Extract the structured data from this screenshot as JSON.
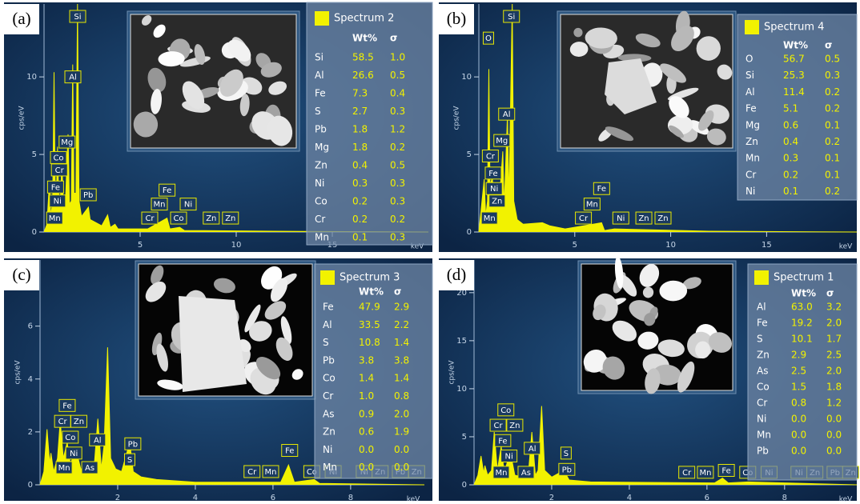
{
  "chart_data": [
    {
      "type": "line",
      "panel_label": "(a)",
      "xlabel": "keV",
      "ylabel": "cps/eV",
      "xlim": [
        0,
        20
      ],
      "ylim": [
        0,
        14.7
      ],
      "xticks": [
        5,
        10,
        15
      ],
      "yticks": [
        0,
        5,
        10
      ],
      "x": [
        0,
        0.15,
        0.28,
        0.35,
        0.45,
        0.52,
        0.58,
        0.65,
        0.7,
        0.76,
        0.85,
        0.93,
        1.0,
        1.1,
        1.25,
        1.32,
        1.42,
        1.49,
        1.56,
        1.66,
        1.74,
        1.82,
        1.95,
        2.31,
        2.4,
        3.0,
        3.31,
        3.45,
        3.69,
        3.85,
        5.4,
        6.4,
        6.55,
        7.06,
        7.3,
        12,
        20
      ],
      "series": [
        {
          "name": "Spectrum 2",
          "color": "#f2f200",
          "values": [
            0,
            0.5,
            3.2,
            1,
            2,
            10.3,
            3,
            2.5,
            5.5,
            2.5,
            2,
            4.5,
            2,
            1.5,
            6.3,
            1.8,
            2,
            10.8,
            2.5,
            2.5,
            14.7,
            2,
            1,
            1.6,
            0.8,
            0.4,
            1.1,
            0.3,
            0.5,
            0.2,
            0.2,
            0.9,
            0.2,
            0.3,
            0.1,
            0.05,
            0
          ]
        }
      ],
      "table": {
        "columns": [
          "Wt%",
          "σ"
        ],
        "rows": [
          [
            "Si",
            "58.5",
            "1.0"
          ],
          [
            "Al",
            "26.6",
            "0.5"
          ],
          [
            "Fe",
            "7.3",
            "0.4"
          ],
          [
            "S",
            "2.7",
            "0.3"
          ],
          [
            "Pb",
            "1.8",
            "1.2"
          ],
          [
            "Mg",
            "1.8",
            "0.2"
          ],
          [
            "Zn",
            "0.4",
            "0.5"
          ],
          [
            "Ni",
            "0.3",
            "0.3"
          ],
          [
            "Co",
            "0.2",
            "0.3"
          ],
          [
            "Cr",
            "0.2",
            "0.2"
          ],
          [
            "Mn",
            "0.1",
            "0.3"
          ]
        ]
      },
      "annotations": [
        {
          "text": "Si",
          "x": 1.75,
          "y": 13.9
        },
        {
          "text": "Al",
          "x": 1.5,
          "y": 10
        },
        {
          "text": "Mg",
          "x": 1.2,
          "y": 5.8
        },
        {
          "text": "Co",
          "x": 0.75,
          "y": 4.8
        },
        {
          "text": "Cr",
          "x": 0.8,
          "y": 4.0
        },
        {
          "text": "Fe",
          "x": 0.6,
          "y": 2.9
        },
        {
          "text": "Ni",
          "x": 0.7,
          "y": 2.0
        },
        {
          "text": "Mn",
          "x": 0.55,
          "y": 0.9
        },
        {
          "text": "Pb",
          "x": 2.3,
          "y": 2.4
        },
        {
          "text": "Cr",
          "x": 5.5,
          "y": 0.9
        },
        {
          "text": "Mn",
          "x": 6.0,
          "y": 1.8
        },
        {
          "text": "Fe",
          "x": 6.4,
          "y": 2.7
        },
        {
          "text": "Ni",
          "x": 7.5,
          "y": 1.8
        },
        {
          "text": "Co",
          "x": 7.0,
          "y": 0.9
        },
        {
          "text": "Zn",
          "x": 8.7,
          "y": 0.9
        },
        {
          "text": "Zn",
          "x": 9.7,
          "y": 0.9
        }
      ]
    },
    {
      "type": "line",
      "panel_label": "(b)",
      "xlabel": "keV",
      "ylabel": "cps/eV",
      "xlim": [
        0,
        19.7
      ],
      "ylim": [
        0,
        14.7
      ],
      "xticks": [
        5,
        10,
        15
      ],
      "yticks": [
        0,
        5,
        10
      ],
      "x": [
        0,
        0.28,
        0.36,
        0.45,
        0.52,
        0.58,
        0.7,
        0.78,
        0.93,
        1.04,
        1.25,
        1.32,
        1.49,
        1.57,
        1.74,
        1.82,
        2.0,
        2.31,
        3.31,
        3.69,
        4.5,
        6.4,
        6.55,
        7.06,
        12,
        19.7
      ],
      "series": [
        {
          "name": "Spectrum 4",
          "color": "#f2f200",
          "values": [
            0,
            3.4,
            1,
            2,
            10.5,
            3,
            3.5,
            2,
            3,
            1.5,
            5.2,
            1.6,
            7.5,
            2,
            14.7,
            2,
            0.8,
            0.5,
            0.6,
            0.4,
            0.2,
            0.6,
            0.1,
            0.2,
            0.05,
            0
          ]
        }
      ],
      "table": {
        "columns": [
          "Wt%",
          "σ"
        ],
        "rows": [
          [
            "O",
            "56.7",
            "0.5"
          ],
          [
            "Si",
            "25.3",
            "0.3"
          ],
          [
            "Al",
            "11.4",
            "0.2"
          ],
          [
            "Fe",
            "5.1",
            "0.2"
          ],
          [
            "Mg",
            "0.6",
            "0.1"
          ],
          [
            "Zn",
            "0.4",
            "0.2"
          ],
          [
            "Mn",
            "0.3",
            "0.1"
          ],
          [
            "Cr",
            "0.2",
            "0.1"
          ],
          [
            "Ni",
            "0.1",
            "0.2"
          ]
        ]
      },
      "annotations": [
        {
          "text": "Si",
          "x": 1.7,
          "y": 13.9
        },
        {
          "text": "O",
          "x": 0.5,
          "y": 12.5
        },
        {
          "text": "Al",
          "x": 1.45,
          "y": 7.6
        },
        {
          "text": "Mg",
          "x": 1.2,
          "y": 5.9
        },
        {
          "text": "Cr",
          "x": 0.6,
          "y": 4.9
        },
        {
          "text": "Fe",
          "x": 0.75,
          "y": 3.8
        },
        {
          "text": "Ni",
          "x": 0.8,
          "y": 2.8
        },
        {
          "text": "Zn",
          "x": 0.95,
          "y": 2.0
        },
        {
          "text": "Mn",
          "x": 0.55,
          "y": 0.9
        },
        {
          "text": "Cr",
          "x": 5.45,
          "y": 0.9
        },
        {
          "text": "Mn",
          "x": 5.9,
          "y": 1.8
        },
        {
          "text": "Fe",
          "x": 6.4,
          "y": 2.8
        },
        {
          "text": "Ni",
          "x": 7.4,
          "y": 0.9
        },
        {
          "text": "Zn",
          "x": 8.6,
          "y": 0.9
        },
        {
          "text": "Zn",
          "x": 9.6,
          "y": 0.9
        }
      ]
    },
    {
      "type": "line",
      "panel_label": "(c)",
      "xlabel": "keV",
      "ylabel": "cps/eV",
      "xlim": [
        0,
        9.9
      ],
      "ylim": [
        0,
        8.5
      ],
      "xticks": [
        2,
        4,
        6,
        8
      ],
      "yticks": [
        0,
        2,
        4,
        6
      ],
      "x": [
        0,
        0.1,
        0.18,
        0.25,
        0.28,
        0.35,
        0.45,
        0.52,
        0.6,
        0.7,
        0.78,
        0.93,
        1.05,
        1.25,
        1.4,
        1.49,
        1.58,
        1.65,
        1.74,
        1.82,
        1.95,
        2.1,
        2.31,
        2.4,
        2.6,
        3.0,
        4,
        6.2,
        6.4,
        6.55,
        7.06,
        7.2,
        9.9
      ],
      "series": [
        {
          "name": "Spectrum 3",
          "color": "#f2f200",
          "values": [
            0,
            0.5,
            2.1,
            0.8,
            1.2,
            0.5,
            1,
            2.4,
            1,
            1.6,
            0.8,
            1.3,
            0.6,
            0.6,
            0.8,
            2.5,
            0.6,
            1.5,
            5.2,
            1,
            0.6,
            0.5,
            1.6,
            0.5,
            0.3,
            0.2,
            0.1,
            0.1,
            0.75,
            0.1,
            0.2,
            0.05,
            0
          ]
        }
      ],
      "table": {
        "columns": [
          "Wt%",
          "σ"
        ],
        "rows": [
          [
            "Fe",
            "47.9",
            "2.9"
          ],
          [
            "Al",
            "33.5",
            "2.2"
          ],
          [
            "S",
            "10.8",
            "1.4"
          ],
          [
            "Pb",
            "3.8",
            "3.8"
          ],
          [
            "Co",
            "1.4",
            "1.4"
          ],
          [
            "Cr",
            "1.0",
            "0.8"
          ],
          [
            "As",
            "0.9",
            "2.0"
          ],
          [
            "Zn",
            "0.6",
            "1.9"
          ],
          [
            "Ni",
            "0.0",
            "0.0"
          ],
          [
            "Mn",
            "0.0",
            "0.0"
          ]
        ]
      },
      "annotations": [
        {
          "text": "Fe",
          "x": 0.7,
          "y": 3.0
        },
        {
          "text": "Cr",
          "x": 0.58,
          "y": 2.4
        },
        {
          "text": "Zn",
          "x": 1.0,
          "y": 2.4
        },
        {
          "text": "Co",
          "x": 0.78,
          "y": 1.8
        },
        {
          "text": "Ni",
          "x": 0.87,
          "y": 1.2
        },
        {
          "text": "Mn",
          "x": 0.62,
          "y": 0.65
        },
        {
          "text": "As",
          "x": 1.28,
          "y": 0.65
        },
        {
          "text": "Al",
          "x": 1.48,
          "y": 1.7
        },
        {
          "text": "Pb",
          "x": 2.39,
          "y": 1.55
        },
        {
          "text": "S",
          "x": 2.31,
          "y": 0.95
        },
        {
          "text": "Fe",
          "x": 6.43,
          "y": 1.3
        },
        {
          "text": "Cr",
          "x": 5.46,
          "y": 0.5
        },
        {
          "text": "Mn",
          "x": 5.94,
          "y": 0.5
        },
        {
          "text": "Co",
          "x": 7.0,
          "y": 0.5
        },
        {
          "text": "Ni",
          "x": 7.55,
          "y": 0.5
        },
        {
          "text": "Ni",
          "x": 8.35,
          "y": 0.5
        },
        {
          "text": "Zn",
          "x": 8.76,
          "y": 0.5
        },
        {
          "text": "Pb",
          "x": 9.28,
          "y": 0.5
        },
        {
          "text": "Zn",
          "x": 9.7,
          "y": 0.5
        }
      ]
    },
    {
      "type": "line",
      "panel_label": "(d)",
      "xlabel": "keV",
      "ylabel": "cps/eV",
      "xlim": [
        0,
        9.86
      ],
      "ylim": [
        0,
        23.4
      ],
      "xticks": [
        2,
        4,
        6,
        8
      ],
      "yticks": [
        0,
        5,
        10,
        15,
        20
      ],
      "x": [
        0,
        0.1,
        0.18,
        0.25,
        0.28,
        0.35,
        0.45,
        0.52,
        0.6,
        0.7,
        0.78,
        0.93,
        1.05,
        1.25,
        1.4,
        1.49,
        1.58,
        1.65,
        1.74,
        1.82,
        2.0,
        2.31,
        2.45,
        3.0,
        6.2,
        6.4,
        6.55,
        7.06,
        9.86
      ],
      "series": [
        {
          "name": "Spectrum 1",
          "color": "#f2f200",
          "values": [
            0,
            1,
            3,
            1.2,
            2,
            1,
            1.5,
            5.5,
            1.5,
            4,
            1.2,
            3.5,
            1,
            0.8,
            1.2,
            5.5,
            1,
            1.5,
            8.2,
            1.5,
            0.8,
            1.5,
            0.5,
            0.3,
            0.2,
            0.7,
            0.2,
            0.3,
            0
          ]
        }
      ],
      "table": {
        "columns": [
          "Wt%",
          "σ"
        ],
        "rows": [
          [
            "Al",
            "63.0",
            "3.2"
          ],
          [
            "Fe",
            "19.2",
            "2.0"
          ],
          [
            "S",
            "10.1",
            "1.7"
          ],
          [
            "Zn",
            "2.9",
            "2.5"
          ],
          [
            "As",
            "2.5",
            "2.0"
          ],
          [
            "Co",
            "1.5",
            "1.8"
          ],
          [
            "Cr",
            "0.8",
            "1.2"
          ],
          [
            "Ni",
            "0.0",
            "0.0"
          ],
          [
            "Mn",
            "0.0",
            "0.0"
          ],
          [
            "Pb",
            "0.0",
            "0.0"
          ]
        ]
      },
      "annotations": [
        {
          "text": "Co",
          "x": 0.82,
          "y": 7.8
        },
        {
          "text": "Cr",
          "x": 0.62,
          "y": 6.2
        },
        {
          "text": "Zn",
          "x": 1.05,
          "y": 6.2
        },
        {
          "text": "Fe",
          "x": 0.74,
          "y": 4.6
        },
        {
          "text": "Ni",
          "x": 0.9,
          "y": 3.0
        },
        {
          "text": "Mn",
          "x": 0.7,
          "y": 1.3
        },
        {
          "text": "As",
          "x": 1.34,
          "y": 1.3
        },
        {
          "text": "Al",
          "x": 1.5,
          "y": 3.8
        },
        {
          "text": "S",
          "x": 2.37,
          "y": 3.3
        },
        {
          "text": "Pb",
          "x": 2.39,
          "y": 1.6
        },
        {
          "text": "Cr",
          "x": 5.48,
          "y": 1.3
        },
        {
          "text": "Mn",
          "x": 5.96,
          "y": 1.3
        },
        {
          "text": "Fe",
          "x": 6.5,
          "y": 1.5
        },
        {
          "text": "Co",
          "x": 7.05,
          "y": 1.3
        },
        {
          "text": "Ni",
          "x": 7.6,
          "y": 1.3
        },
        {
          "text": "Ni",
          "x": 8.37,
          "y": 1.3
        },
        {
          "text": "Zn",
          "x": 8.78,
          "y": 1.3
        },
        {
          "text": "Pb",
          "x": 9.3,
          "y": 1.3
        },
        {
          "text": "Zn",
          "x": 9.7,
          "y": 1.3
        }
      ]
    }
  ]
}
